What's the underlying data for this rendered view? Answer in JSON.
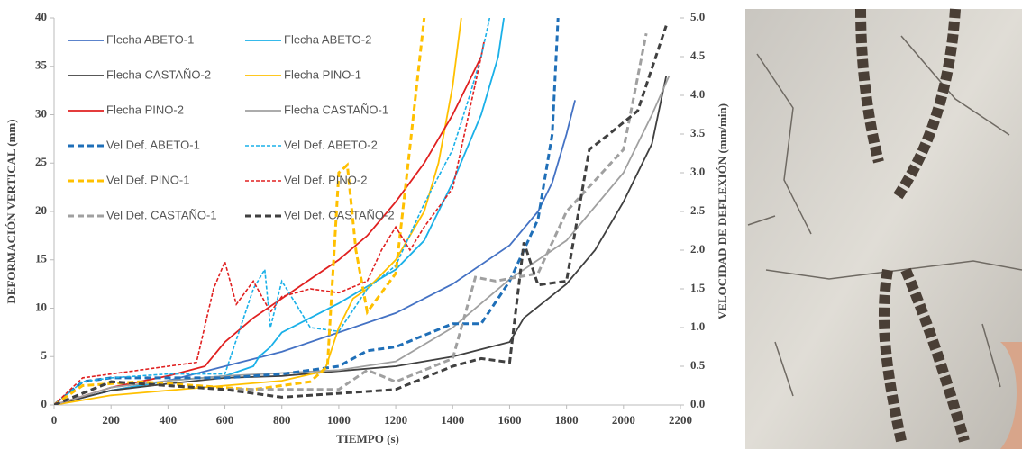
{
  "chart_data": {
    "type": "line",
    "xlabel": "TIEMPO (s)",
    "ylabel": "DEFORMACIÓN VERTICAL (mm)",
    "y2label": "VELOCIDAD DE DEFLEXIÓN (mm/min)",
    "xlim": [
      0,
      2200
    ],
    "xticks": [
      0,
      200,
      400,
      600,
      800,
      1000,
      1200,
      1400,
      1600,
      1800,
      2000,
      2200
    ],
    "ylim": [
      0,
      40
    ],
    "yticks": [
      0,
      5,
      10,
      15,
      20,
      25,
      30,
      35,
      40
    ],
    "y2lim": [
      0,
      5
    ],
    "y2ticks": [
      {
        "value": 0,
        "label": "0.0"
      },
      0.5,
      {
        "value": 1,
        "label": "1.0"
      },
      1.5,
      {
        "value": 2,
        "label": "2.0"
      },
      2.5,
      {
        "value": 3,
        "label": "3.0"
      },
      3.5,
      {
        "value": 4,
        "label": "4.0"
      },
      4.5,
      {
        "value": 5,
        "label": "5.0"
      }
    ],
    "legend": "upper left",
    "series": [
      {
        "name": "Flecha ABETO-1",
        "color": "#4472c4",
        "dash": false,
        "x": [
          0,
          200,
          400,
          600,
          800,
          1000,
          1200,
          1400,
          1600,
          1700,
          1750,
          1800,
          1830
        ],
        "values": [
          0,
          1.5,
          2.5,
          4,
          5.5,
          7.5,
          9.5,
          12.5,
          16.5,
          20,
          23,
          28,
          31.5
        ]
      },
      {
        "name": "Flecha ABETO-2",
        "color": "#1ab0e8",
        "dash": false,
        "x": [
          0,
          200,
          400,
          600,
          700,
          720,
          760,
          800,
          1000,
          1200,
          1300,
          1400,
          1500,
          1560,
          1580
        ],
        "values": [
          0,
          1.5,
          2.5,
          3,
          4,
          5,
          6,
          7.5,
          10.5,
          14,
          17,
          23,
          30,
          36,
          40
        ]
      },
      {
        "name": "Flecha CASTAÑO-2",
        "color": "#404040",
        "dash": false,
        "x": [
          0,
          200,
          400,
          600,
          800,
          1000,
          1200,
          1400,
          1600,
          1650,
          1800,
          1900,
          2000,
          2100,
          2150
        ],
        "values": [
          0,
          1.5,
          2.2,
          2.8,
          3,
          3.5,
          4,
          5,
          6.5,
          9,
          12.5,
          16,
          21,
          27,
          34
        ]
      },
      {
        "name": "Flecha PINO-1",
        "color": "#ffc000",
        "dash": false,
        "x": [
          0,
          200,
          400,
          600,
          800,
          950,
          1000,
          1050,
          1100,
          1200,
          1300,
          1350,
          1400,
          1430
        ],
        "values": [
          0,
          1,
          1.5,
          2,
          2.5,
          3.5,
          8,
          11,
          12,
          15,
          20,
          25,
          33,
          40
        ]
      },
      {
        "name": "Flecha PINO-2",
        "color": "#e02020",
        "dash": false,
        "x": [
          0,
          200,
          400,
          530,
          600,
          700,
          800,
          1000,
          1100,
          1200,
          1300,
          1400,
          1500,
          1510
        ],
        "values": [
          0,
          1.8,
          3,
          4,
          6.5,
          9,
          11,
          15,
          17.5,
          21,
          25,
          30,
          36,
          37.5
        ]
      },
      {
        "name": "Flecha CASTAÑO-1",
        "color": "#a0a0a0",
        "dash": false,
        "x": [
          0,
          200,
          400,
          600,
          800,
          1000,
          1200,
          1400,
          1600,
          1800,
          2000,
          2100,
          2160
        ],
        "values": [
          0,
          1.8,
          2.5,
          3,
          3.3,
          3.6,
          4.5,
          8,
          13,
          17,
          24,
          30,
          34
        ]
      },
      {
        "name": "Vel Def. ABETO-1",
        "color": "#1f6fb8",
        "dash": true,
        "thick": true,
        "axis": "y2",
        "x": [
          0,
          100,
          200,
          400,
          600,
          800,
          1000,
          1100,
          1200,
          1300,
          1400,
          1500,
          1600,
          1700,
          1750,
          1770
        ],
        "values": [
          0,
          0.3,
          0.35,
          0.35,
          0.35,
          0.4,
          0.5,
          0.7,
          0.75,
          0.9,
          1.05,
          1.05,
          1.6,
          2.4,
          3.5,
          5
        ]
      },
      {
        "name": "Vel Def. ABETO-2",
        "color": "#1ab0e8",
        "dash": true,
        "axis": "y2",
        "x": [
          0,
          100,
          200,
          400,
          600,
          700,
          740,
          760,
          800,
          900,
          1000,
          1100,
          1200,
          1300,
          1400,
          1460,
          1500,
          1530
        ],
        "values": [
          0,
          0.3,
          0.35,
          0.4,
          0.4,
          1.5,
          1.75,
          1,
          1.6,
          1,
          0.95,
          1.5,
          1.8,
          2.6,
          3.3,
          4,
          4.5,
          5
        ]
      },
      {
        "name": "Vel Def. PINO-1",
        "color": "#ffc000",
        "dash": true,
        "thick": true,
        "axis": "y2",
        "x": [
          0,
          100,
          300,
          500,
          700,
          900,
          960,
          1000,
          1030,
          1060,
          1100,
          1200,
          1240,
          1300
        ],
        "values": [
          0,
          0.25,
          0.3,
          0.25,
          0.2,
          0.3,
          0.5,
          3,
          3.1,
          2,
          1.2,
          1.7,
          3,
          5
        ]
      },
      {
        "name": "Vel Def. PINO-2",
        "color": "#e02020",
        "dash": true,
        "axis": "y2",
        "x": [
          0,
          100,
          300,
          500,
          560,
          600,
          640,
          700,
          760,
          800,
          900,
          1000,
          1100,
          1150,
          1200,
          1250,
          1300,
          1400,
          1500
        ],
        "values": [
          0,
          0.35,
          0.45,
          0.55,
          1.5,
          1.85,
          1.3,
          1.6,
          1.2,
          1.4,
          1.5,
          1.45,
          1.6,
          2,
          2.3,
          2,
          2.3,
          2.8,
          4.5
        ]
      },
      {
        "name": "Vel Def. CASTAÑO-1",
        "color": "#a0a0a0",
        "dash": true,
        "thick": true,
        "axis": "y2",
        "x": [
          0,
          200,
          400,
          600,
          800,
          1000,
          1100,
          1200,
          1400,
          1480,
          1550,
          1700,
          1800,
          1900,
          2000,
          2080
        ],
        "values": [
          0,
          0.3,
          0.25,
          0.2,
          0.2,
          0.2,
          0.45,
          0.3,
          0.6,
          1.65,
          1.6,
          1.7,
          2.5,
          2.9,
          3.3,
          4.8
        ]
      },
      {
        "name": "Vel Def. CASTAÑO-2",
        "color": "#404040",
        "dash": true,
        "thick": true,
        "axis": "y2",
        "x": [
          0,
          200,
          400,
          600,
          800,
          1000,
          1200,
          1400,
          1500,
          1600,
          1650,
          1700,
          1800,
          1880,
          1950,
          2050,
          2150
        ],
        "values": [
          0,
          0.3,
          0.25,
          0.2,
          0.1,
          0.15,
          0.2,
          0.5,
          0.6,
          0.55,
          2.1,
          1.55,
          1.6,
          3.3,
          3.5,
          3.8,
          4.9
        ]
      }
    ]
  }
}
